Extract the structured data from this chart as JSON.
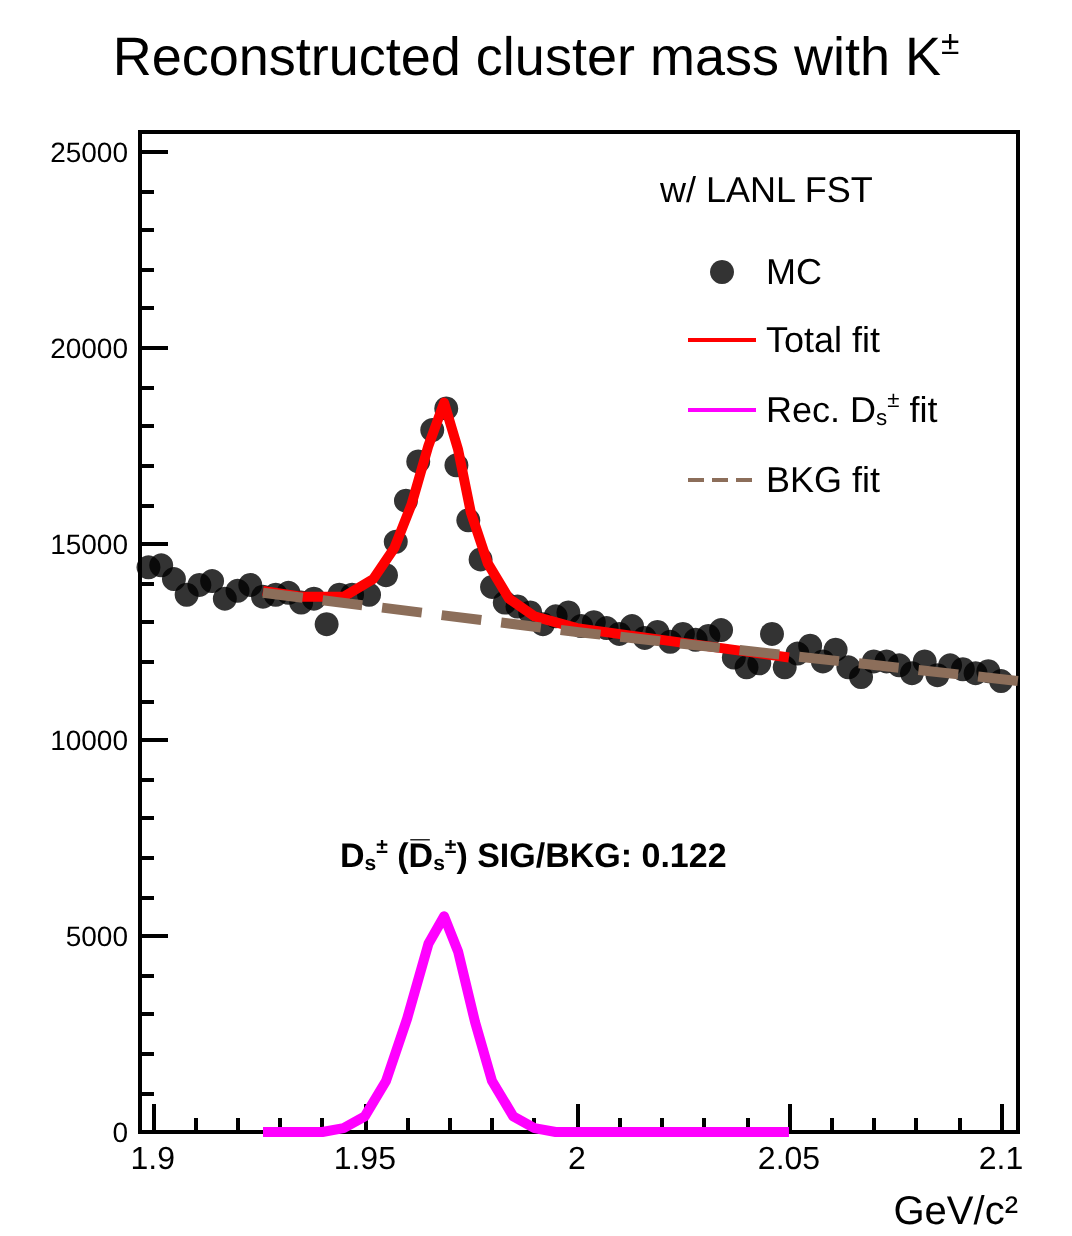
{
  "chart_data": {
    "type": "scatter",
    "title": "Reconstructed cluster mass with K$^{±}$",
    "xlabel": "GeV/c²",
    "legend_title": "w/ LANL FST",
    "legend": "top right",
    "grid": false,
    "xlim": [
      1.897,
      2.104
    ],
    "xticks": [
      1.9,
      1.95,
      2,
      2.05,
      2.1
    ],
    "ylim": [
      0,
      25500
    ],
    "yticks": [
      0,
      5000,
      10000,
      15000,
      20000,
      25000
    ],
    "annotations": [
      "D$_{s}$$^{±}$ (D̅$_{s}$$^{±}$) SIG/BKG: 0.122"
    ],
    "series": [
      {
        "name": "MC",
        "color": "#000000",
        "marker": "circle",
        "x": [
          1.899,
          1.902,
          1.905,
          1.908,
          1.911,
          1.914,
          1.917,
          1.92,
          1.923,
          1.926,
          1.929,
          1.932,
          1.935,
          1.938,
          1.941,
          1.944,
          1.947,
          1.951,
          1.955,
          1.9573,
          1.9597,
          1.9626,
          1.9659,
          1.9692,
          1.9716,
          1.9744,
          1.9773,
          1.98,
          1.983,
          1.986,
          1.989,
          1.992,
          1.995,
          1.998,
          2.001,
          2.004,
          2.007,
          2.01,
          2.013,
          2.016,
          2.019,
          2.022,
          2.025,
          2.028,
          2.031,
          2.034,
          2.037,
          2.04,
          2.043,
          2.046,
          2.049,
          2.052,
          2.055,
          2.058,
          2.061,
          2.064,
          2.067,
          2.07,
          2.073,
          2.076,
          2.079,
          2.082,
          2.085,
          2.088,
          2.091,
          2.094,
          2.097,
          2.1
        ],
        "values": [
          14400,
          14450,
          14100,
          13700,
          13950,
          14050,
          13600,
          13800,
          13950,
          13650,
          13700,
          13750,
          13500,
          13600,
          12950,
          13700,
          13700,
          13700,
          14200,
          15050,
          16100,
          17100,
          17900,
          18450,
          17000,
          15600,
          14600,
          13900,
          13500,
          13400,
          13250,
          12950,
          13150,
          13250,
          12900,
          13000,
          12850,
          12700,
          12900,
          12600,
          12750,
          12500,
          12700,
          12550,
          12650,
          12800,
          12100,
          11850,
          11950,
          12700,
          11850,
          12200,
          12400,
          12000,
          12300,
          11850,
          11600,
          12000,
          12000,
          11900,
          11700,
          12000,
          11650,
          11900,
          11800,
          11700,
          11750,
          11500
        ]
      },
      {
        "name": "Total fit",
        "type": "line",
        "color": "#ff0000",
        "marker": "none",
        "line_style": "solid",
        "x": [
          1.926,
          1.935,
          1.945,
          1.952,
          1.957,
          1.961,
          1.965,
          1.9687,
          1.972,
          1.975,
          1.979,
          1.984,
          1.99,
          2.0,
          2.02,
          2.05
        ],
        "values": [
          13800,
          13650,
          13650,
          14100,
          14900,
          16000,
          17500,
          18600,
          17400,
          15800,
          14500,
          13600,
          13150,
          12850,
          12550,
          12100
        ]
      },
      {
        "name": "Rec. D$_{s}$$^{±}$ fit",
        "type": "line",
        "color": "#ff00ff",
        "marker": "none",
        "line_style": "solid",
        "x": [
          1.926,
          1.94,
          1.945,
          1.95,
          1.955,
          1.96,
          1.965,
          1.9687,
          1.972,
          1.976,
          1.98,
          1.985,
          1.99,
          1.995,
          2.05
        ],
        "values": [
          0,
          0,
          100,
          400,
          1300,
          2900,
          4800,
          5500,
          4600,
          2800,
          1300,
          400,
          100,
          0,
          0
        ]
      },
      {
        "name": "BKG fit",
        "type": "line",
        "color": "#8c6e5a",
        "marker": "none",
        "line_style": "dashed",
        "x": [
          1.926,
          2.0,
          2.104
        ],
        "values": [
          13750,
          12750,
          11500
        ]
      }
    ]
  }
}
